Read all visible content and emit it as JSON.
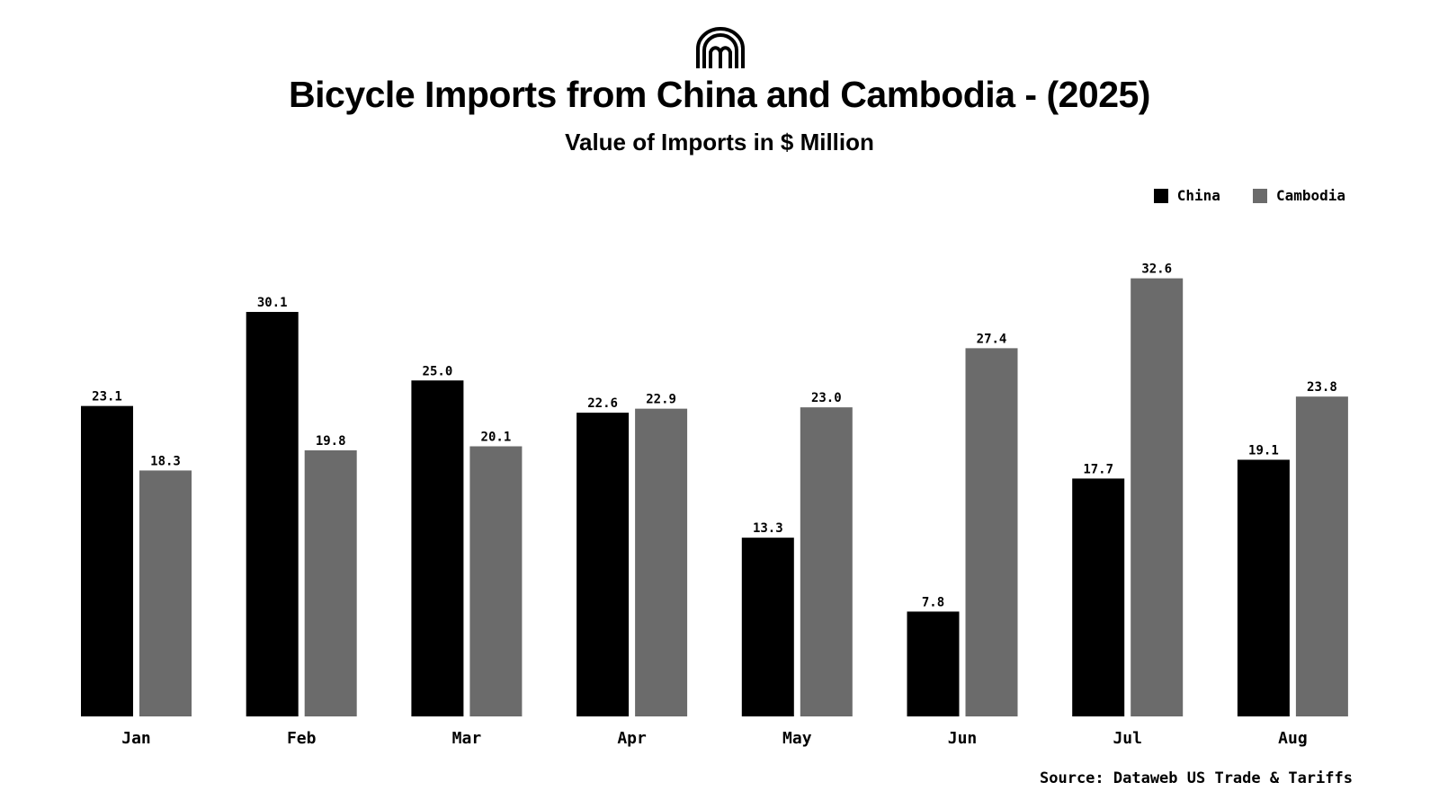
{
  "header": {
    "logo_icon": "arches-logo-icon",
    "title": "Bicycle Imports from China and Cambodia - (2025)",
    "subtitle": "Value of Imports in $ Million"
  },
  "legend": {
    "items": [
      {
        "label": "China",
        "color": "#000000"
      },
      {
        "label": "Cambodia",
        "color": "#6b6b6b"
      }
    ]
  },
  "footer": {
    "source": "Source: Dataweb US Trade & Tariffs"
  },
  "chart_data": {
    "type": "bar",
    "title": "Bicycle Imports from China and Cambodia - (2025)",
    "subtitle": "Value of Imports in $ Million",
    "xlabel": "",
    "ylabel": "",
    "grid": false,
    "legend_position": "top-right",
    "ylim": [
      0,
      34
    ],
    "categories": [
      "Jan",
      "Feb",
      "Mar",
      "Apr",
      "May",
      "Jun",
      "Jul",
      "Aug"
    ],
    "series": [
      {
        "name": "China",
        "color": "#000000",
        "values": [
          23.1,
          30.1,
          25.0,
          22.6,
          13.3,
          7.8,
          17.7,
          19.1
        ]
      },
      {
        "name": "Cambodia",
        "color": "#6b6b6b",
        "values": [
          18.3,
          19.8,
          20.1,
          22.9,
          23.0,
          27.4,
          32.6,
          23.8
        ]
      }
    ]
  }
}
